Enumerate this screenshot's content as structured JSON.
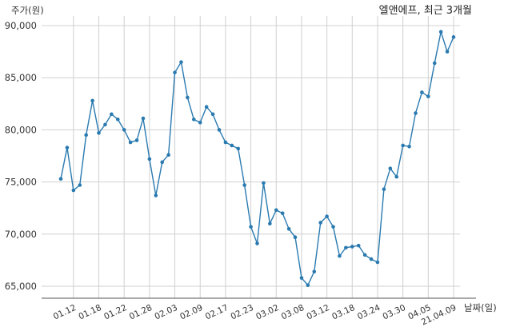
{
  "chart_data": {
    "type": "line",
    "title": "엘앤에프, 최근 3개월",
    "ylabel": "주가(원)",
    "xlabel": "날짜(일)",
    "ylim": [
      63000,
      91000
    ],
    "grid": true,
    "series_color": "#2a7ab0",
    "y_ticks": [
      "65,000",
      "70,000",
      "75,000",
      "80,000",
      "85,000",
      "90,000"
    ],
    "x_tick_labels": [
      "01.12",
      "01.18",
      "01.22",
      "01.28",
      "02.03",
      "02.09",
      "02.17",
      "02.23",
      "03.02",
      "03.08",
      "03.12",
      "03.18",
      "03.24",
      "03.30",
      "04.05",
      "21.04.09"
    ],
    "x_tick_index": [
      2,
      6,
      10,
      14,
      18,
      22,
      26,
      30,
      34,
      38,
      42,
      46,
      50,
      54,
      58,
      62
    ],
    "series": [
      {
        "values": [
          75300,
          78300,
          74200,
          74700,
          79500,
          82800,
          79700,
          80500,
          81500,
          81000,
          80000,
          78800,
          79000,
          81100,
          77200,
          73700,
          76900,
          77600,
          85500,
          86500,
          83100,
          81000,
          80700,
          82200,
          81500,
          80000,
          78800,
          78500,
          78200,
          74700,
          70700,
          69100,
          74900,
          71000,
          72300,
          72000,
          70500,
          69700,
          65800,
          65100,
          66400,
          71100,
          71700,
          70700,
          67900,
          68700,
          68800,
          68900,
          68000,
          67600,
          67300,
          74300,
          76300,
          75500,
          78500,
          78400,
          81600,
          83600,
          83200,
          86400,
          89400,
          87500,
          88900
        ]
      }
    ]
  }
}
